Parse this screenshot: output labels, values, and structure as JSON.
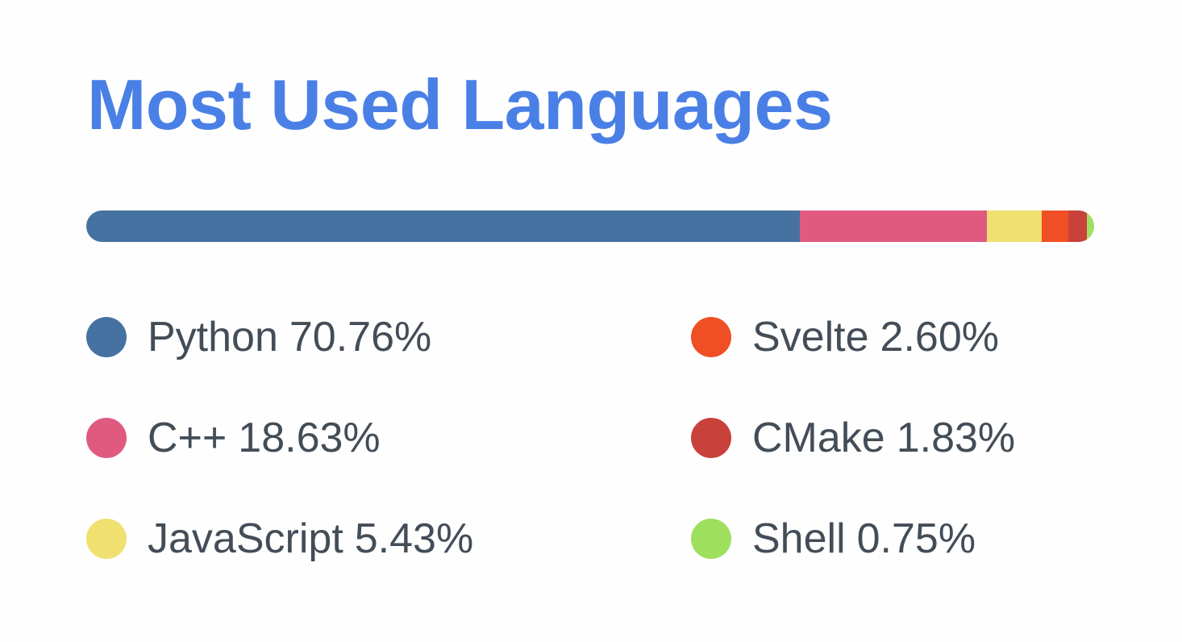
{
  "card": {
    "title": "Most Used Languages"
  },
  "chart_data": {
    "type": "bar",
    "orientation": "horizontal-stacked",
    "title": "Most Used Languages",
    "categories": [
      "Python",
      "C++",
      "JavaScript",
      "Svelte",
      "CMake",
      "Shell"
    ],
    "values": [
      70.76,
      18.63,
      5.43,
      2.6,
      1.83,
      0.75
    ],
    "labels": [
      "70.76%",
      "18.63%",
      "5.43%",
      "2.60%",
      "1.83%",
      "0.75%"
    ],
    "colors": [
      "#4572a1",
      "#e05a80",
      "#f0e070",
      "#f04f26",
      "#c8413b",
      "#9ee05e"
    ],
    "legend": "bottom",
    "grid": false
  }
}
